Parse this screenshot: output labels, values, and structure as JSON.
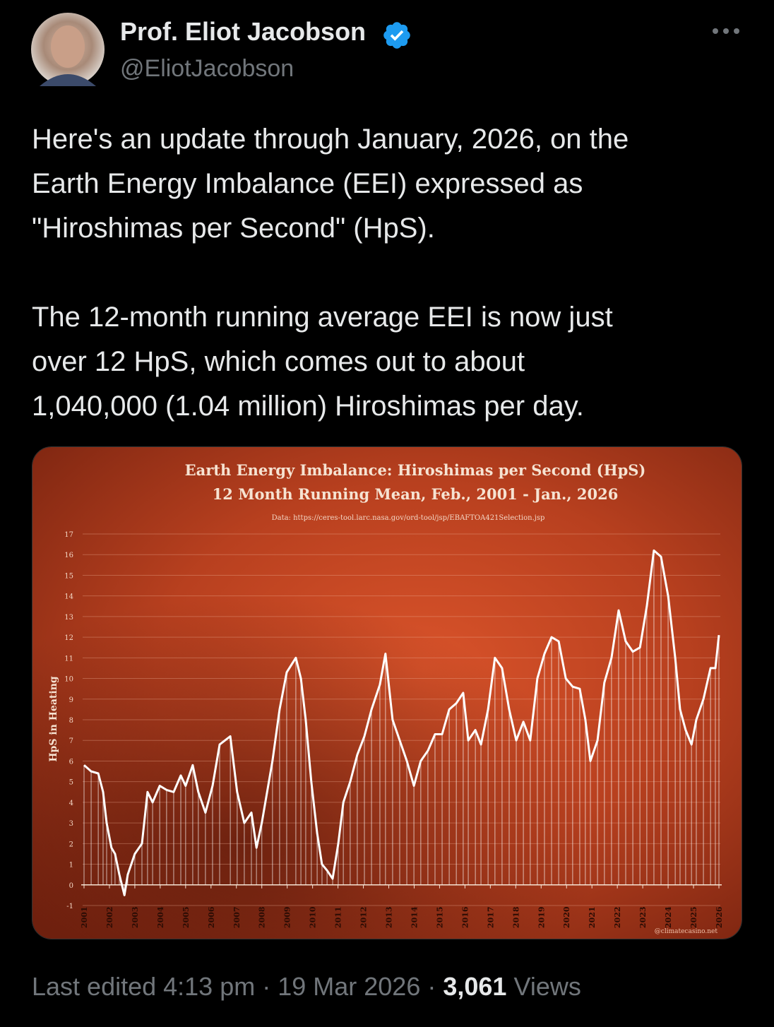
{
  "header": {
    "name": "Prof. Eliot Jacobson",
    "handle": "@EliotJacobson"
  },
  "tweet": {
    "paragraphs": [
      [
        "Here's an update through January, 2026, on the",
        "Earth Energy Imbalance (EEI) expressed as",
        "\"Hiroshimas per Second\" (HpS)."
      ],
      [
        "The 12-month running average EEI is now just",
        "over 12 HpS, which comes out to about",
        "1,040,000 (1.04 million) Hiroshimas per day."
      ]
    ]
  },
  "chart_data": {
    "type": "line",
    "title": "Earth Energy Imbalance: Hiroshimas per Second (HpS)",
    "subtitle": "12 Month Running Mean, Feb., 2001 - Jan., 2026",
    "source": "Data: https://ceres-tool.larc.nasa.gov/ord-tool/jsp/EBAFTOA421Selection.jsp",
    "credit": "@climatecasino.net",
    "y_label": "HpS in Heating",
    "color": "#ffffff",
    "x": [
      2001.0,
      2001.28,
      2001.56,
      2001.75,
      2001.89,
      2002.08,
      2002.22,
      2002.39,
      2002.59,
      2002.72,
      2003.0,
      2003.28,
      2003.5,
      2003.7,
      2003.98,
      2004.25,
      2004.53,
      2004.81,
      2005.0,
      2005.28,
      2005.5,
      2005.78,
      2006.06,
      2006.34,
      2006.76,
      2007.03,
      2007.31,
      2007.59,
      2007.79,
      2008.0,
      2008.42,
      2008.7,
      2008.98,
      2009.34,
      2009.54,
      2009.73,
      2009.95,
      2010.18,
      2010.37,
      2010.57,
      2010.79,
      2011.01,
      2011.21,
      2011.48,
      2011.76,
      2012.04,
      2012.32,
      2012.65,
      2012.87,
      2013.15,
      2013.43,
      2013.71,
      2013.99,
      2014.26,
      2014.54,
      2014.82,
      2015.1,
      2015.38,
      2015.66,
      2015.93,
      2016.13,
      2016.41,
      2016.63,
      2016.91,
      2017.18,
      2017.46,
      2017.74,
      2018.02,
      2018.3,
      2018.57,
      2018.85,
      2019.13,
      2019.41,
      2019.69,
      2019.97,
      2020.24,
      2020.52,
      2020.74,
      2020.94,
      2021.22,
      2021.49,
      2021.77,
      2022.05,
      2022.33,
      2022.61,
      2022.89,
      2023.16,
      2023.44,
      2023.72,
      2024.0,
      2024.28,
      2024.47,
      2024.69,
      2024.92,
      2025.11,
      2025.39,
      2025.67,
      2025.86,
      2026.0
    ],
    "values": [
      5.8,
      5.5,
      5.4,
      4.5,
      3.0,
      1.8,
      1.5,
      0.5,
      -0.5,
      0.5,
      1.5,
      2.0,
      4.5,
      4.0,
      4.8,
      4.6,
      4.5,
      5.3,
      4.8,
      5.8,
      4.5,
      3.5,
      4.8,
      6.8,
      7.2,
      4.5,
      3.0,
      3.5,
      1.8,
      3.0,
      6.0,
      8.5,
      10.3,
      11.0,
      10.0,
      8.0,
      5.0,
      2.5,
      1.0,
      0.7,
      0.3,
      2.0,
      4.0,
      5.0,
      6.3,
      7.2,
      8.5,
      9.7,
      11.2,
      8.0,
      7.0,
      6.0,
      4.8,
      6.0,
      6.5,
      7.3,
      7.3,
      8.5,
      8.8,
      9.3,
      7.0,
      7.5,
      6.8,
      8.5,
      11.0,
      10.5,
      8.5,
      7.0,
      7.9,
      7.0,
      10.0,
      11.2,
      12.0,
      11.8,
      10.0,
      9.6,
      9.5,
      8.0,
      6.0,
      7.0,
      9.8,
      11.0,
      13.3,
      11.8,
      11.3,
      11.5,
      13.5,
      16.2,
      15.9,
      14.0,
      11.0,
      8.5,
      7.5,
      6.8,
      8.0,
      9.0,
      10.5,
      10.5,
      12.1
    ],
    "xlim": [
      2001,
      2026
    ],
    "xticks": [
      2001,
      2002,
      2003,
      2004,
      2005,
      2006,
      2007,
      2008,
      2009,
      2010,
      2011,
      2012,
      2013,
      2014,
      2015,
      2016,
      2017,
      2018,
      2019,
      2020,
      2021,
      2022,
      2023,
      2024,
      2025,
      2026
    ],
    "ylim": [
      -1,
      17
    ],
    "yticks": [
      -1,
      0,
      1,
      2,
      3,
      4,
      5,
      6,
      7,
      8,
      9,
      10,
      11,
      12,
      13,
      14,
      15,
      16,
      17
    ],
    "grid": true
  },
  "footer": {
    "edited": "Last edited 4:13 pm",
    "separator": "·",
    "date": "19 Mar 2026",
    "views_count": "3,061",
    "views_label": "Views"
  }
}
